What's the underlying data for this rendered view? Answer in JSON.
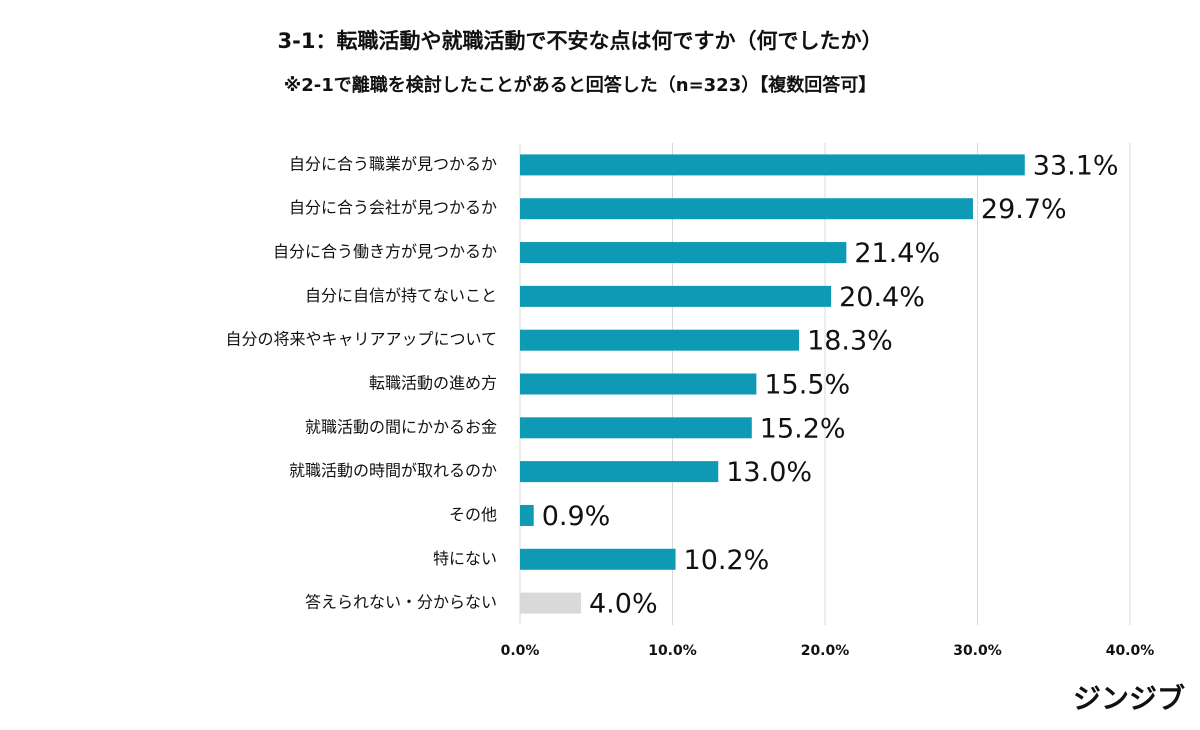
{
  "chart_data": {
    "type": "barh",
    "title": "3-1：転職活動や就職活動で不安な点は何ですか（何でしたか）",
    "subtitle": "※2-1で離職を検討したことがあると回答した（n=323）【複数回答可】",
    "categories": [
      "自分に合う職業が見つかるか",
      "自分に合う会社が見つかるか",
      "自分に合う働き方が見つかるか",
      "自分に自信が持てないこと",
      "自分の将来やキャリアアップについて",
      "転職活動の進め方",
      "就職活動の間にかかるお金",
      "就職活動の時間が取れるのか",
      "その他",
      "特にない",
      "答えられない・分からない"
    ],
    "values": [
      33.1,
      29.7,
      21.4,
      20.4,
      18.3,
      15.5,
      15.2,
      13.0,
      0.9,
      10.2,
      4.0
    ],
    "value_labels": [
      "33.1%",
      "29.7%",
      "21.4%",
      "20.4%",
      "18.3%",
      "15.5%",
      "15.2%",
      "13.0%",
      "0.9%",
      "10.2%",
      "4.0%"
    ],
    "colors": [
      "#0e9ab5",
      "#0e9ab5",
      "#0e9ab5",
      "#0e9ab5",
      "#0e9ab5",
      "#0e9ab5",
      "#0e9ab5",
      "#0e9ab5",
      "#0e9ab5",
      "#0e9ab5",
      "#d9d9d9"
    ],
    "xlim": [
      0,
      40
    ],
    "xticks": [
      {
        "value": 0,
        "label": "0.0%"
      },
      {
        "value": 10,
        "label": "10.0%"
      },
      {
        "value": 20,
        "label": "20.0%"
      },
      {
        "value": 30,
        "label": "30.0%"
      },
      {
        "value": 40,
        "label": "40.0%"
      }
    ],
    "grid": true,
    "logo": "ジンジブ"
  }
}
